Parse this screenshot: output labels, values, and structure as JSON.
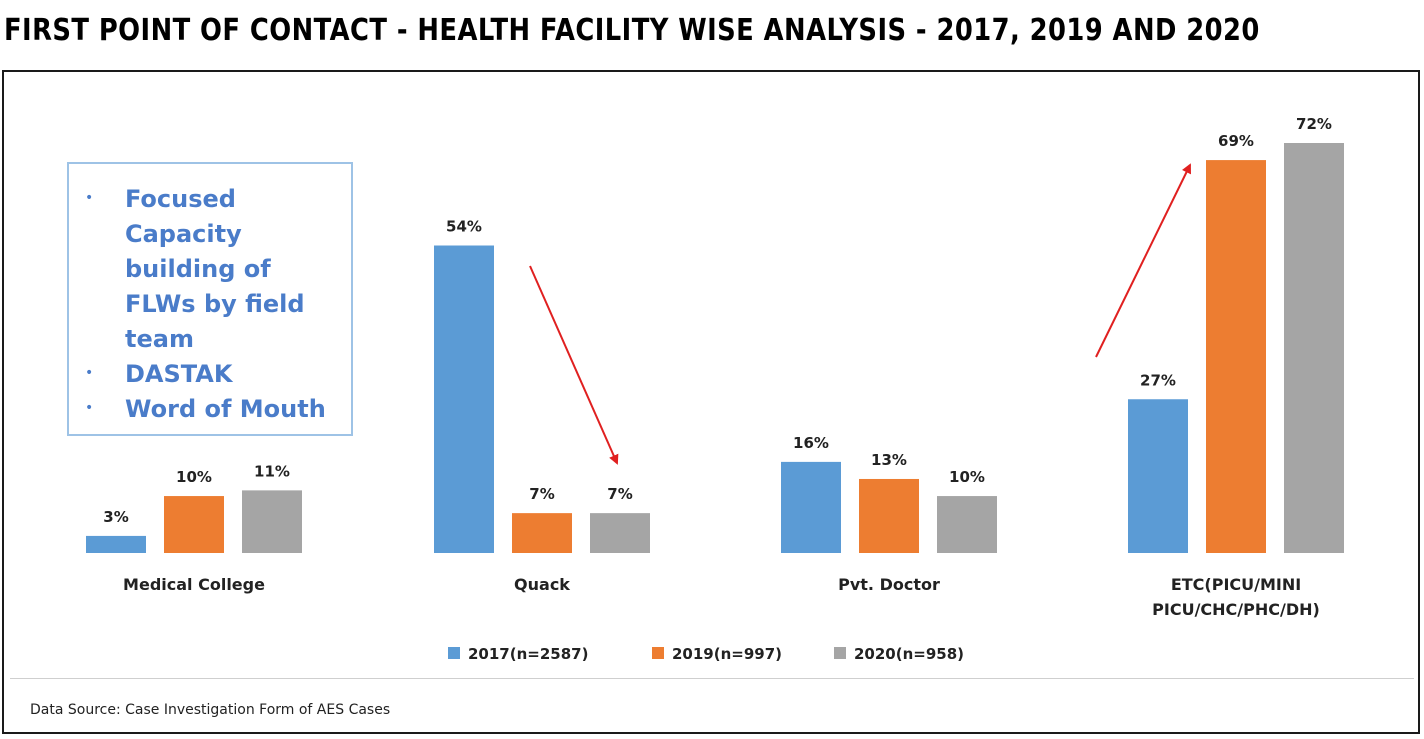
{
  "title": "FIRST POINT OF CONTACT - HEALTH FACILITY WISE ANALYSIS - 2017, 2019 AND 2020",
  "callout": {
    "items": [
      {
        "lines": [
          "Focused",
          "Capacity",
          "building of",
          "FLWs by field",
          "team"
        ]
      },
      {
        "lines": [
          "DASTAK"
        ]
      },
      {
        "lines": [
          "Word of Mouth"
        ]
      }
    ],
    "bullet": "•"
  },
  "source_note": "Data Source: Case Investigation Form of AES Cases",
  "chart_data": {
    "type": "bar",
    "categories": [
      "Medical College",
      "Quack",
      "Pvt. Doctor",
      "ETC(PICU/MINI PICU/CHC/PHC/DH)"
    ],
    "category_lines": [
      [
        "Medical College"
      ],
      [
        "Quack"
      ],
      [
        "Pvt. Doctor"
      ],
      [
        "ETC(PICU/MINI",
        "PICU/CHC/PHC/DH)"
      ]
    ],
    "series": [
      {
        "name": "2017(n=2587)",
        "values": [
          3,
          54,
          16,
          27
        ],
        "labels": [
          "3%",
          "54%",
          "16%",
          "27%"
        ],
        "color": "#5b9bd5"
      },
      {
        "name": "2019(n=997)",
        "values": [
          10,
          7,
          13,
          69
        ],
        "labels": [
          "10%",
          "7%",
          "13%",
          "69%"
        ],
        "color": "#ed7d31"
      },
      {
        "name": "2020(n=958)",
        "values": [
          11,
          7,
          10,
          72
        ],
        "labels": [
          "11%",
          "7%",
          "10%",
          "72%"
        ],
        "color": "#a5a5a5"
      }
    ],
    "value_unit": "%",
    "ylim": [
      0,
      72
    ],
    "legend_position": "bottom",
    "grid": false,
    "annotations": [
      {
        "type": "arrow",
        "direction": "decrease",
        "category": "Quack",
        "color": "#e02020"
      },
      {
        "type": "arrow",
        "direction": "increase",
        "category": "ETC(PICU/MINI PICU/CHC/PHC/DH)",
        "color": "#e02020"
      }
    ]
  }
}
